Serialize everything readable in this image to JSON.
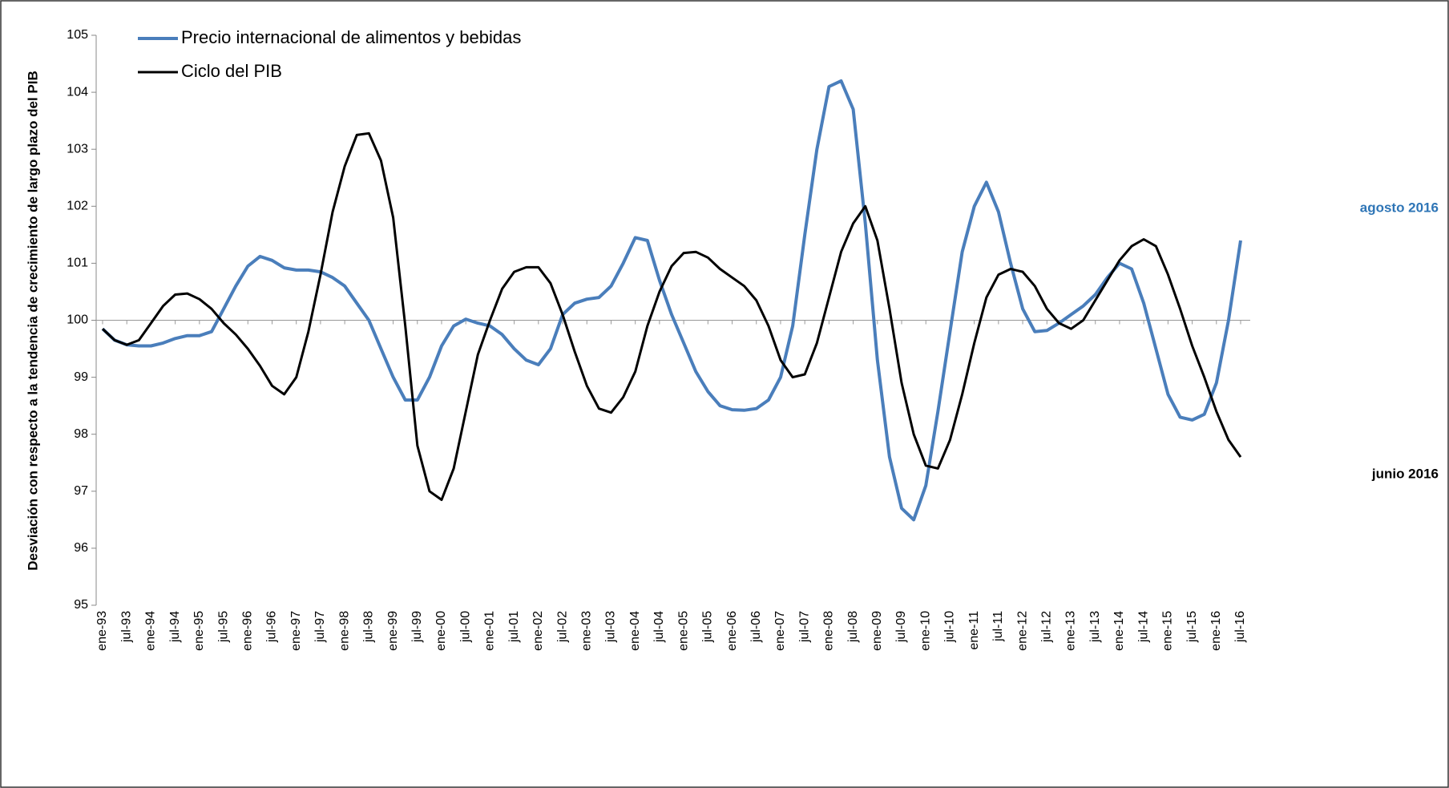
{
  "chart_data": {
    "type": "line",
    "y_axis_label": "Desviación con respecto a la tendencia de crecimiento de largo plazo del PIB",
    "categories": [
      "ene-93",
      null,
      "jul-93",
      null,
      "ene-94",
      null,
      "jul-94",
      null,
      "ene-95",
      null,
      "jul-95",
      null,
      "ene-96",
      null,
      "jul-96",
      null,
      "ene-97",
      null,
      "jul-97",
      null,
      "ene-98",
      null,
      "jul-98",
      null,
      "ene-99",
      null,
      "jul-99",
      null,
      "ene-00",
      null,
      "jul-00",
      null,
      "ene-01",
      null,
      "jul-01",
      null,
      "ene-02",
      null,
      "jul-02",
      null,
      "ene-03",
      null,
      "jul-03",
      null,
      "ene-04",
      null,
      "jul-04",
      null,
      "ene-05",
      null,
      "jul-05",
      null,
      "ene-06",
      null,
      "jul-06",
      null,
      "ene-07",
      null,
      "jul-07",
      null,
      "ene-08",
      null,
      "jul-08",
      null,
      "ene-09",
      null,
      "jul-09",
      null,
      "ene-10",
      null,
      "jul-10",
      null,
      "ene-11",
      null,
      "jul-11",
      null,
      "ene-12",
      null,
      "jul-12",
      null,
      "ene-13",
      null,
      "jul-13",
      null,
      "ene-14",
      null,
      "jul-14",
      null,
      "ene-15",
      null,
      "jul-15",
      null,
      "ene-16",
      null,
      "jul-16"
    ],
    "series": [
      {
        "name": "Precio internacional de alimentos y bebidas",
        "color": "#4a7ebb",
        "values": [
          99.85,
          99.65,
          99.57,
          99.55,
          99.55,
          99.6,
          99.68,
          99.73,
          99.73,
          99.8,
          100.2,
          100.6,
          100.95,
          101.12,
          101.05,
          100.92,
          100.88,
          100.88,
          100.85,
          100.75,
          100.6,
          100.3,
          100.0,
          99.5,
          99.0,
          98.6,
          98.6,
          99.0,
          99.55,
          99.9,
          100.02,
          99.95,
          99.9,
          99.75,
          99.5,
          99.3,
          99.22,
          99.5,
          100.1,
          100.3,
          100.37,
          100.4,
          100.6,
          101.0,
          101.45,
          101.4,
          100.7,
          100.1,
          99.6,
          99.1,
          98.75,
          98.5,
          98.43,
          98.42,
          98.45,
          98.6,
          99.0,
          99.9,
          101.5,
          103.0,
          104.1,
          104.2,
          103.7,
          101.7,
          99.3,
          97.6,
          96.7,
          96.5,
          97.1,
          98.4,
          99.8,
          101.2,
          102.0,
          102.42,
          101.9,
          101.0,
          100.2,
          99.8,
          99.82,
          99.95,
          100.1,
          100.25,
          100.45,
          100.75,
          101.0,
          100.9,
          100.3,
          99.5,
          98.7,
          98.3,
          98.25,
          98.35,
          98.9,
          100.0,
          101.4
        ]
      },
      {
        "name": "Ciclo del PIB",
        "color": "#000000",
        "values": [
          99.85,
          99.65,
          99.57,
          99.65,
          99.95,
          100.25,
          100.45,
          100.47,
          100.37,
          100.2,
          99.95,
          99.75,
          99.5,
          99.2,
          98.85,
          98.7,
          99.0,
          99.8,
          100.8,
          101.9,
          102.7,
          103.25,
          103.28,
          102.8,
          101.8,
          99.9,
          97.8,
          97.0,
          96.85,
          97.4,
          98.4,
          99.4,
          100.0,
          100.55,
          100.85,
          100.93,
          100.93,
          100.65,
          100.1,
          99.45,
          98.85,
          98.45,
          98.38,
          98.65,
          99.1,
          99.9,
          100.5,
          100.95,
          101.18,
          101.2,
          101.1,
          100.9,
          100.75,
          100.6,
          100.35,
          99.9,
          99.3,
          99.0,
          99.05,
          99.6,
          100.4,
          101.2,
          101.7,
          102.0,
          101.4,
          100.2,
          98.9,
          98.0,
          97.45,
          97.4,
          97.9,
          98.7,
          99.6,
          100.4,
          100.8,
          100.9,
          100.85,
          100.6,
          100.2,
          99.95,
          99.85,
          100.0,
          100.35,
          100.7,
          101.05,
          101.3,
          101.42,
          101.3,
          100.8,
          100.2,
          99.55,
          99.0,
          98.4,
          97.9,
          97.6
        ]
      }
    ],
    "ylim": [
      95,
      105
    ],
    "yticks": [
      95,
      96,
      97,
      98,
      99,
      100,
      101,
      102,
      103,
      104,
      105
    ],
    "x_axis_crosses": 100,
    "annotations": [
      "agosto 2016",
      "junio 2016"
    ],
    "legend": "top-left"
  }
}
